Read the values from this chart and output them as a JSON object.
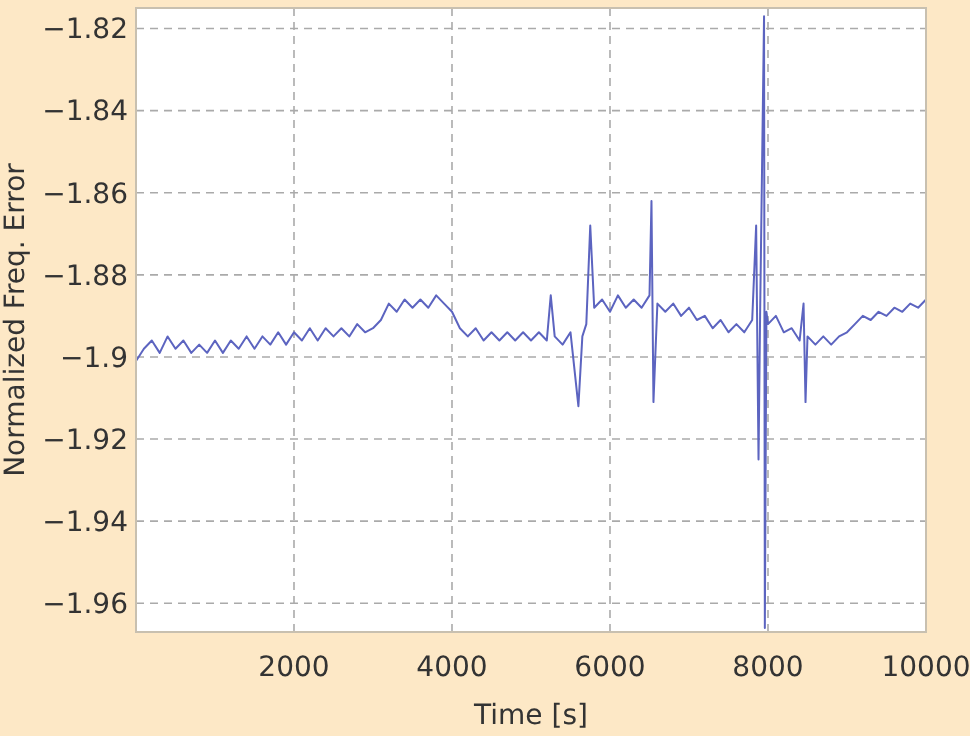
{
  "chart_data": {
    "type": "line",
    "xlabel": "Time [s]",
    "ylabel": "Normalized Freq. Error",
    "xlim": [
      0,
      10000
    ],
    "xticks": [
      2000,
      4000,
      6000,
      8000,
      10000
    ],
    "ylim": [
      -1.967,
      -1.815
    ],
    "yticks": [
      {
        "value": -1.96,
        "label": "−1.96"
      },
      {
        "value": -1.94,
        "label": "−1.94"
      },
      {
        "value": -1.92,
        "label": "−1.92"
      },
      {
        "value": -1.9,
        "label": "−1.9"
      },
      {
        "value": -1.88,
        "label": "−1.88"
      },
      {
        "value": -1.86,
        "label": "−1.86"
      },
      {
        "value": -1.84,
        "label": "−1.84"
      },
      {
        "value": -1.82,
        "label": "−1.82"
      }
    ],
    "grid": true,
    "marker": "none",
    "line_style": "solid",
    "series": [
      {
        "color": "#5c64c0",
        "x": [
          0,
          100,
          200,
          300,
          400,
          500,
          600,
          700,
          800,
          900,
          1000,
          1100,
          1200,
          1300,
          1400,
          1500,
          1600,
          1700,
          1800,
          1900,
          2000,
          2100,
          2200,
          2300,
          2400,
          2500,
          2600,
          2700,
          2800,
          2900,
          3000,
          3100,
          3200,
          3300,
          3400,
          3500,
          3600,
          3700,
          3800,
          3900,
          4000,
          4100,
          4200,
          4300,
          4400,
          4500,
          4600,
          4700,
          4800,
          4900,
          5000,
          5100,
          5200,
          5250,
          5300,
          5400,
          5500,
          5600,
          5650,
          5700,
          5750,
          5800,
          5900,
          6000,
          6100,
          6200,
          6300,
          6400,
          6500,
          6525,
          6550,
          6600,
          6700,
          6800,
          6900,
          7000,
          7100,
          7200,
          7300,
          7400,
          7500,
          7600,
          7700,
          7800,
          7850,
          7880,
          7900,
          7950,
          7960,
          7980,
          8000,
          8100,
          8200,
          8300,
          8400,
          8450,
          8475,
          8500,
          8600,
          8700,
          8800,
          8900,
          9000,
          9100,
          9200,
          9300,
          9400,
          9500,
          9600,
          9700,
          9800,
          9900,
          10000
        ],
        "values": [
          -1.901,
          -1.898,
          -1.896,
          -1.899,
          -1.895,
          -1.898,
          -1.896,
          -1.899,
          -1.897,
          -1.899,
          -1.896,
          -1.899,
          -1.896,
          -1.898,
          -1.895,
          -1.898,
          -1.895,
          -1.897,
          -1.894,
          -1.897,
          -1.894,
          -1.896,
          -1.893,
          -1.896,
          -1.893,
          -1.895,
          -1.893,
          -1.895,
          -1.892,
          -1.894,
          -1.893,
          -1.891,
          -1.887,
          -1.889,
          -1.886,
          -1.888,
          -1.886,
          -1.888,
          -1.885,
          -1.887,
          -1.889,
          -1.893,
          -1.895,
          -1.893,
          -1.896,
          -1.894,
          -1.896,
          -1.894,
          -1.896,
          -1.894,
          -1.896,
          -1.894,
          -1.896,
          -1.885,
          -1.895,
          -1.897,
          -1.894,
          -1.912,
          -1.895,
          -1.892,
          -1.868,
          -1.888,
          -1.886,
          -1.889,
          -1.885,
          -1.888,
          -1.886,
          -1.888,
          -1.885,
          -1.862,
          -1.911,
          -1.887,
          -1.889,
          -1.887,
          -1.89,
          -1.888,
          -1.891,
          -1.89,
          -1.893,
          -1.891,
          -1.894,
          -1.892,
          -1.894,
          -1.891,
          -1.868,
          -1.925,
          -1.89,
          -1.817,
          -1.966,
          -1.889,
          -1.892,
          -1.89,
          -1.894,
          -1.893,
          -1.896,
          -1.887,
          -1.911,
          -1.895,
          -1.897,
          -1.895,
          -1.897,
          -1.895,
          -1.894,
          -1.892,
          -1.89,
          -1.891,
          -1.889,
          -1.89,
          -1.888,
          -1.889,
          -1.887,
          -1.888,
          -1.886
        ]
      }
    ]
  }
}
